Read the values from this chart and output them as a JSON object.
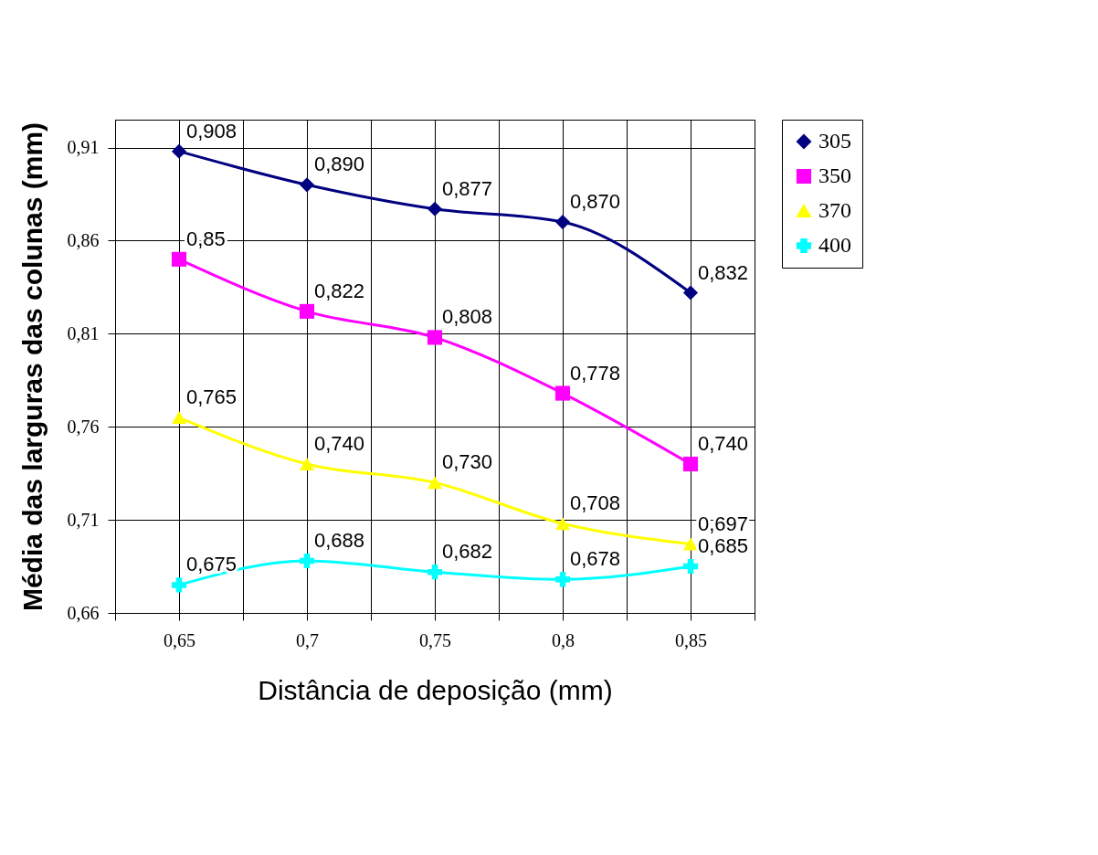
{
  "chart_data": {
    "type": "line",
    "xlabel": "Distância de deposição (mm)",
    "ylabel": "Média das larguras das colunas (mm)",
    "x": [
      0.65,
      0.7,
      0.75,
      0.8,
      0.85
    ],
    "xlim": [
      0.625,
      0.875
    ],
    "xticks": [
      {
        "value": 0.625,
        "label": null
      },
      {
        "value": 0.65,
        "label": "0,65"
      },
      {
        "value": 0.675,
        "label": null
      },
      {
        "value": 0.7,
        "label": "0,7"
      },
      {
        "value": 0.725,
        "label": null
      },
      {
        "value": 0.75,
        "label": "0,75"
      },
      {
        "value": 0.775,
        "label": null
      },
      {
        "value": 0.8,
        "label": "0,8"
      },
      {
        "value": 0.825,
        "label": null
      },
      {
        "value": 0.85,
        "label": "0,85"
      },
      {
        "value": 0.875,
        "label": null
      }
    ],
    "ylim": [
      0.66,
      0.925
    ],
    "yticks": [
      {
        "value": 0.66,
        "label": "0,66"
      },
      {
        "value": 0.71,
        "label": "0,71"
      },
      {
        "value": 0.76,
        "label": "0,76"
      },
      {
        "value": 0.81,
        "label": "0,81"
      },
      {
        "value": 0.86,
        "label": "0,86"
      },
      {
        "value": 0.91,
        "label": "0,91"
      }
    ],
    "grid": true,
    "legend": "right",
    "line_style": "solid",
    "series": [
      {
        "name": "305",
        "color": "#000080",
        "marker": "diamond",
        "values": [
          0.908,
          0.89,
          0.877,
          0.87,
          0.832
        ],
        "value_labels": [
          "0,908",
          "0,890",
          "0,877",
          "0,870",
          "0,832"
        ]
      },
      {
        "name": "350",
        "color": "#ff00ff",
        "marker": "square",
        "values": [
          0.85,
          0.822,
          0.808,
          0.778,
          0.74
        ],
        "value_labels": [
          "0,85",
          "0,822",
          "0,808",
          "0,778",
          "0,740"
        ]
      },
      {
        "name": "370",
        "color": "#ffff00",
        "marker": "triangle",
        "values": [
          0.765,
          0.74,
          0.73,
          0.708,
          0.697
        ],
        "value_labels": [
          "0,765",
          "0,740",
          "0,730",
          "0,708",
          "0,697"
        ]
      },
      {
        "name": "400",
        "color": "#00ffff",
        "marker": "cross",
        "values": [
          0.675,
          0.688,
          0.682,
          0.678,
          0.685
        ],
        "value_labels": [
          "0,675",
          "0,688",
          "0,682",
          "0,678",
          "0,685"
        ]
      }
    ]
  }
}
